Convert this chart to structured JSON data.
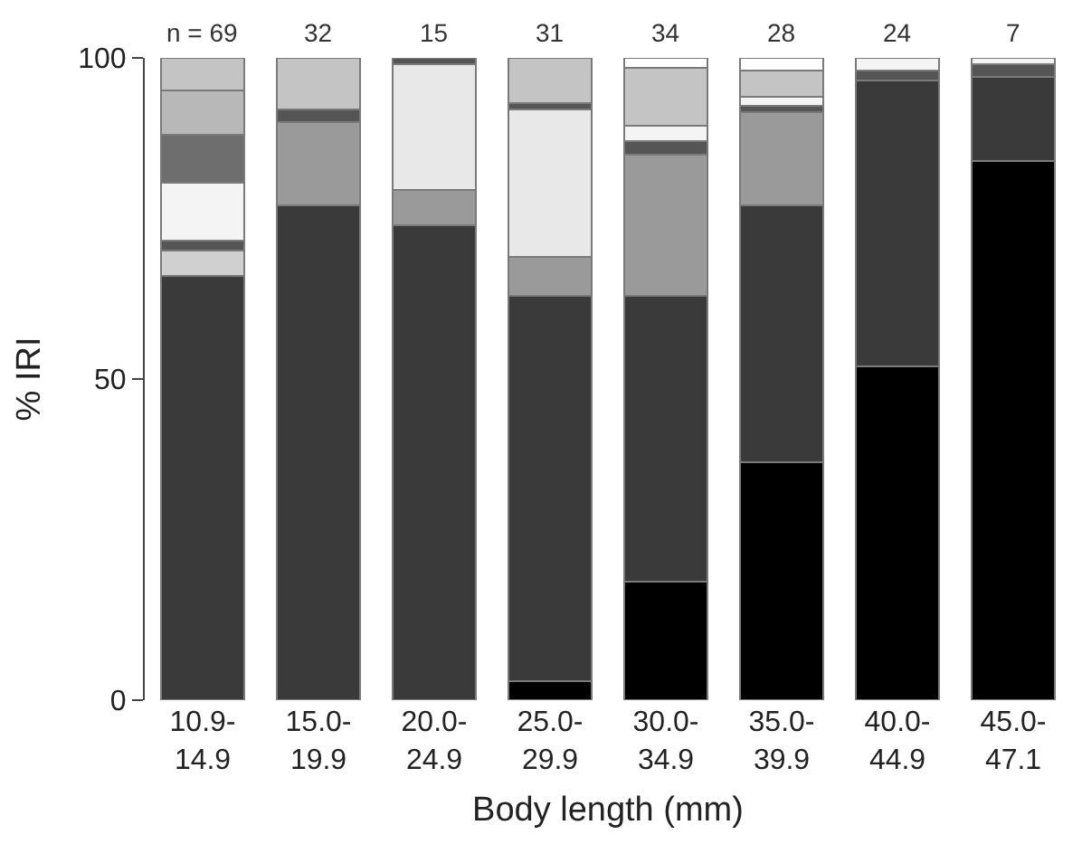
{
  "chart_data": {
    "type": "bar",
    "stacked": true,
    "xlabel": "Body length (mm)",
    "ylabel": "% IRI",
    "categories": [
      "10.9-\n14.9",
      "15.0-\n19.9",
      "20.0-\n24.9",
      "25.0-\n29.9",
      "30.0-\n34.9",
      "35.0-\n39.9",
      "40.0-\n44.9",
      "45.0-\n47.1"
    ],
    "series": [
      {
        "color": "#000000",
        "values": [
          0,
          0,
          0,
          3,
          18.5,
          37,
          52,
          84
        ]
      },
      {
        "color": "#3a3a3a",
        "values": [
          66,
          77,
          74,
          60,
          44.5,
          40,
          44.5,
          13
        ]
      },
      {
        "color": "#d0d0d0",
        "values": [
          4,
          0,
          0,
          0,
          0,
          0,
          0,
          0
        ]
      },
      {
        "color": "#9a9a9a",
        "values": [
          0,
          13,
          5.5,
          6,
          22,
          14.5,
          0,
          0
        ]
      },
      {
        "color": "#e8e8e8",
        "values": [
          0,
          0,
          19.5,
          23,
          0,
          0,
          0,
          0
        ]
      },
      {
        "color": "#555555",
        "values": [
          1.5,
          2,
          1,
          1,
          2,
          1,
          1.5,
          2
        ]
      },
      {
        "color": "#f4f4f4",
        "values": [
          9,
          0,
          0,
          0,
          2.5,
          1.5,
          2,
          1
        ]
      },
      {
        "color": "#6e6e6e",
        "values": [
          7.5,
          0,
          0,
          0,
          0,
          0,
          0,
          0
        ]
      },
      {
        "color": "#b8b8b8",
        "values": [
          7,
          0,
          0,
          0,
          0,
          0,
          0,
          0
        ]
      },
      {
        "color": "#c4c4c4",
        "values": [
          5,
          8,
          0,
          7,
          9,
          4,
          0,
          0
        ]
      },
      {
        "color": "#ffffff",
        "values": [
          0,
          0,
          0,
          0,
          1.5,
          2,
          0,
          0
        ]
      }
    ],
    "ylim": [
      0,
      100
    ],
    "yticks": [
      0,
      50,
      100
    ],
    "annotations": [
      "n = 69",
      "32",
      "15",
      "31",
      "34",
      "28",
      "24",
      "7"
    ]
  }
}
